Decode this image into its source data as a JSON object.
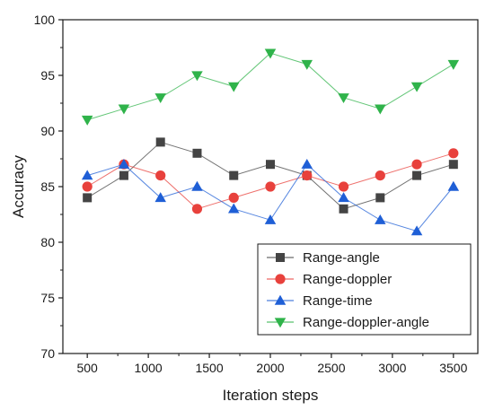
{
  "chart_data": {
    "type": "line",
    "title": "",
    "xlabel": "Iteration steps",
    "ylabel": "Accuracy",
    "xlim": [
      300,
      3700
    ],
    "ylim": [
      70,
      100
    ],
    "x_ticks": [
      500,
      1000,
      1500,
      2000,
      2500,
      3000,
      3500
    ],
    "y_ticks": [
      70,
      75,
      80,
      85,
      90,
      95,
      100
    ],
    "x": [
      500,
      800,
      1100,
      1400,
      1700,
      2000,
      2300,
      2600,
      2900,
      3200,
      3500
    ],
    "grid": false,
    "legend_position": "bottom-right",
    "series": [
      {
        "name": "Range-angle",
        "color": "#444444",
        "marker": "square",
        "values": [
          84,
          86,
          89,
          88,
          86,
          87,
          86,
          83,
          84,
          86,
          87
        ]
      },
      {
        "name": "Range-doppler",
        "color": "#e8413c",
        "marker": "circle",
        "values": [
          85,
          87,
          86,
          83,
          84,
          85,
          86,
          85,
          86,
          87,
          88
        ]
      },
      {
        "name": "Range-time",
        "color": "#1f5fd6",
        "marker": "triangle-up",
        "values": [
          86,
          87,
          84,
          85,
          83,
          82,
          87,
          84,
          82,
          81,
          85
        ]
      },
      {
        "name": "Range-doppler-angle",
        "color": "#2fb34a",
        "marker": "triangle-down",
        "values": [
          91,
          92,
          93,
          95,
          94,
          97,
          96,
          93,
          92,
          94,
          96
        ]
      }
    ]
  }
}
